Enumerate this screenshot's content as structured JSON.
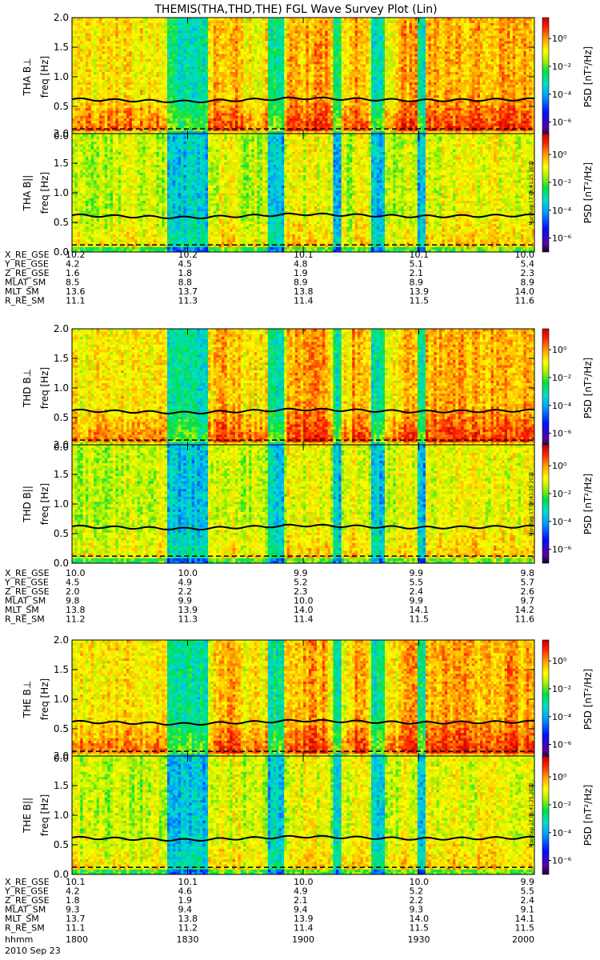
{
  "chart_data": {
    "type": "heatmap",
    "title": "THEMIS(THA,THD,THE) FGL Wave Survey Plot (Lin)",
    "date": "2010 Sep 23",
    "time_axis": {
      "label": "hhmm",
      "ticks": [
        "1800",
        "1830",
        "1900",
        "1930",
        "2000"
      ],
      "range_minutes": [
        0,
        120
      ]
    },
    "freq_axis": {
      "label": "freq [Hz]",
      "range": [
        0,
        2
      ],
      "ticks": [
        "0.0",
        "0.5",
        "1.0",
        "1.5",
        "2.0"
      ]
    },
    "colorbar": {
      "label": "PSD [nT²/Hz]",
      "scale": "log",
      "ticks": [
        "10⁰",
        "10⁻²",
        "10⁻⁴",
        "10⁻⁶"
      ],
      "tick_exponents": [
        0,
        -2,
        -4,
        -6
      ],
      "range_exponents": [
        -7,
        1.5
      ]
    },
    "stamp": "Mon Sep 17 06:41:25 2012",
    "minute_ticks": [
      0,
      30,
      60,
      90,
      120
    ],
    "reference_lines": {
      "solid_trace_hz_at_ticks": [
        0.62,
        0.58,
        0.64,
        0.6,
        0.62
      ],
      "dashed_hz": 0.12
    },
    "probes": [
      {
        "id": "THA",
        "panels": [
          {
            "label": "THA B⊥",
            "component": "perp"
          },
          {
            "label": "THA B||",
            "component": "par"
          }
        ],
        "ephemeris": [
          {
            "name": "X_RE_GSE",
            "values": [
              "10.2",
              "10.2",
              "10.1",
              "10.1",
              "10.0"
            ]
          },
          {
            "name": "Y_RE_GSE",
            "values": [
              "4.2",
              "4.5",
              "4.8",
              "5.1",
              "5.4"
            ]
          },
          {
            "name": "Z_RE_GSE",
            "values": [
              "1.6",
              "1.8",
              "1.9",
              "2.1",
              "2.3"
            ]
          },
          {
            "name": "MLAT_SM",
            "values": [
              "8.5",
              "8.8",
              "8.9",
              "8.9",
              "8.9"
            ]
          },
          {
            "name": "MLT_SM",
            "values": [
              "13.6",
              "13.7",
              "13.8",
              "13.9",
              "14.0"
            ]
          },
          {
            "name": "R_RE_SM",
            "values": [
              "11.1",
              "11.3",
              "11.4",
              "11.5",
              "11.6"
            ]
          }
        ]
      },
      {
        "id": "THD",
        "panels": [
          {
            "label": "THD B⊥",
            "component": "perp"
          },
          {
            "label": "THD B||",
            "component": "par"
          }
        ],
        "ephemeris": [
          {
            "name": "X_RE_GSE",
            "values": [
              "10.0",
              "10.0",
              "9.9",
              "9.9",
              "9.8"
            ]
          },
          {
            "name": "Y_RE_GSE",
            "values": [
              "4.5",
              "4.9",
              "5.2",
              "5.5",
              "5.7"
            ]
          },
          {
            "name": "Z_RE_GSE",
            "values": [
              "2.0",
              "2.2",
              "2.3",
              "2.4",
              "2.6"
            ]
          },
          {
            "name": "MLAT_SM",
            "values": [
              "9.8",
              "9.9",
              "10.0",
              "9.9",
              "9.7"
            ]
          },
          {
            "name": "MLT_SM",
            "values": [
              "13.8",
              "13.9",
              "14.0",
              "14.1",
              "14.2"
            ]
          },
          {
            "name": "R_RE_SM",
            "values": [
              "11.2",
              "11.3",
              "11.4",
              "11.5",
              "11.6"
            ]
          }
        ]
      },
      {
        "id": "THE",
        "panels": [
          {
            "label": "THE B⊥",
            "component": "perp"
          },
          {
            "label": "THE B||",
            "component": "par"
          }
        ],
        "ephemeris": [
          {
            "name": "X_RE_GSE",
            "values": [
              "10.1",
              "10.1",
              "10.0",
              "10.0",
              "9.9"
            ]
          },
          {
            "name": "Y_RE_GSE",
            "values": [
              "4.2",
              "4.6",
              "4.9",
              "5.2",
              "5.5"
            ]
          },
          {
            "name": "Z_RE_GSE",
            "values": [
              "1.8",
              "1.9",
              "2.1",
              "2.2",
              "2.4"
            ]
          },
          {
            "name": "MLAT_SM",
            "values": [
              "9.3",
              "9.4",
              "9.4",
              "9.3",
              "9.1"
            ]
          },
          {
            "name": "MLT_SM",
            "values": [
              "13.7",
              "13.8",
              "13.9",
              "14.0",
              "14.1"
            ]
          },
          {
            "name": "R_RE_SM",
            "values": [
              "11.1",
              "11.2",
              "11.4",
              "11.5",
              "11.5"
            ]
          }
        ]
      }
    ]
  }
}
